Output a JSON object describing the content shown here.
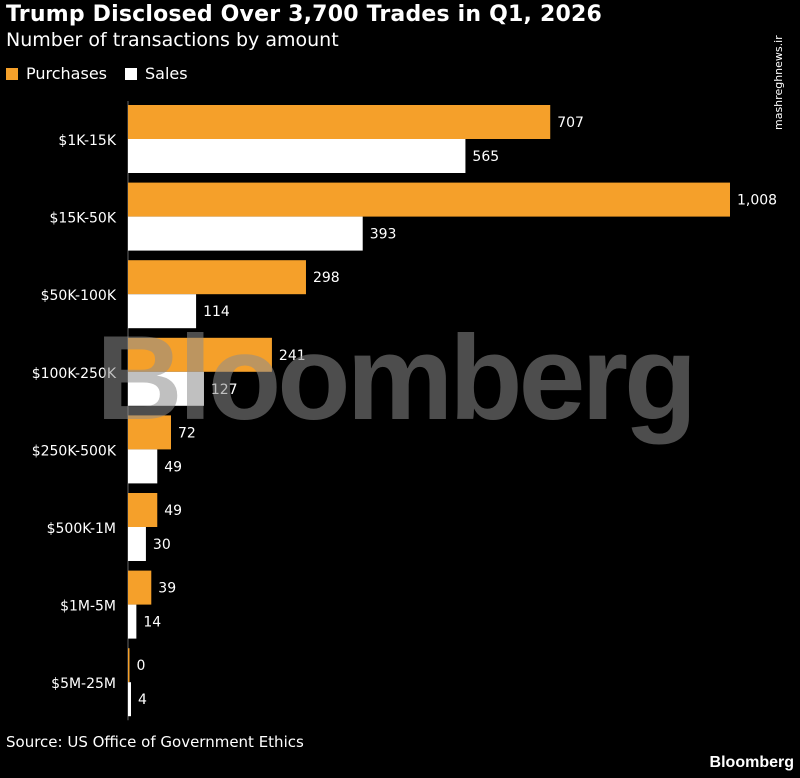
{
  "header": {
    "title": "Trump Disclosed Over 3,700 Trades in Q1, 2026",
    "subtitle": "Number of transactions by amount"
  },
  "legend": {
    "purchases": "Purchases",
    "sales": "Sales"
  },
  "colors": {
    "purchases": "#F5A02A",
    "sales": "#FFFFFF",
    "background": "#000000"
  },
  "footer": {
    "source": "Source: US Office of Government Ethics",
    "brand": "Bloomberg"
  },
  "watermarks": {
    "center": "Bloomberg",
    "side_url": "mashreghnews.ir"
  },
  "chart_data": {
    "type": "bar",
    "orientation": "horizontal",
    "categories": [
      "$1K-15K",
      "$15K-50K",
      "$50K-100K",
      "$100K-250K",
      "$250K-500K",
      "$500K-1M",
      "$1M-5M",
      "$5M-25M"
    ],
    "series": [
      {
        "name": "Purchases",
        "values": [
          707,
          1008,
          298,
          241,
          72,
          49,
          39,
          0
        ]
      },
      {
        "name": "Sales",
        "values": [
          565,
          393,
          114,
          127,
          49,
          30,
          14,
          4
        ]
      }
    ],
    "value_labels": {
      "Purchases": [
        "707",
        "1,008",
        "298",
        "241",
        "72",
        "49",
        "39",
        "0"
      ],
      "Sales": [
        "565",
        "393",
        "114",
        "127",
        "49",
        "30",
        "14",
        "4"
      ]
    },
    "xlim": [
      0,
      1008
    ],
    "grid": false,
    "legend_position": "top-left"
  }
}
